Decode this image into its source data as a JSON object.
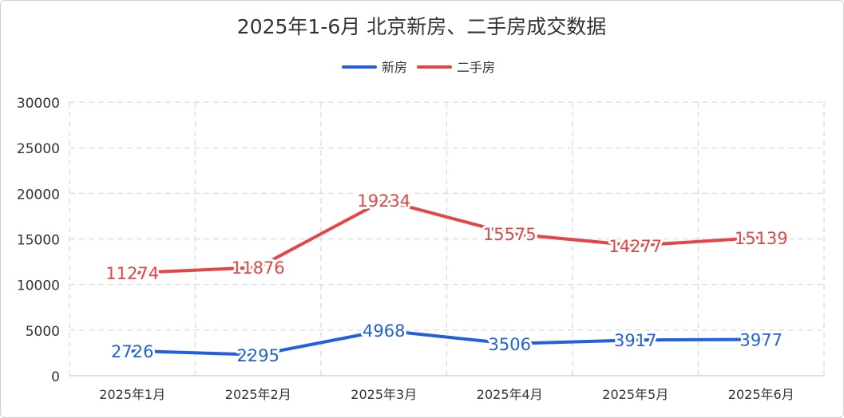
{
  "chart_data": {
    "type": "line",
    "title": "2025年1-6月 北京新房、二手房成交数据",
    "categories": [
      "2025年1月",
      "2025年2月",
      "2025年3月",
      "2025年4月",
      "2025年5月",
      "2025年6月"
    ],
    "series": [
      {
        "name": "新房",
        "color": "#1f5fe0",
        "values": [
          2726,
          2295,
          4968,
          3506,
          3917,
          3977
        ]
      },
      {
        "name": "二手房",
        "color": "#e64545",
        "values": [
          11274,
          11876,
          19234,
          15575,
          14277,
          15139
        ]
      }
    ],
    "ylim": [
      0,
      30000
    ],
    "yticks": [
      0,
      5000,
      10000,
      15000,
      20000,
      25000,
      30000
    ],
    "grid": true,
    "legend_position": "top-center",
    "xlabel": "",
    "ylabel": ""
  }
}
